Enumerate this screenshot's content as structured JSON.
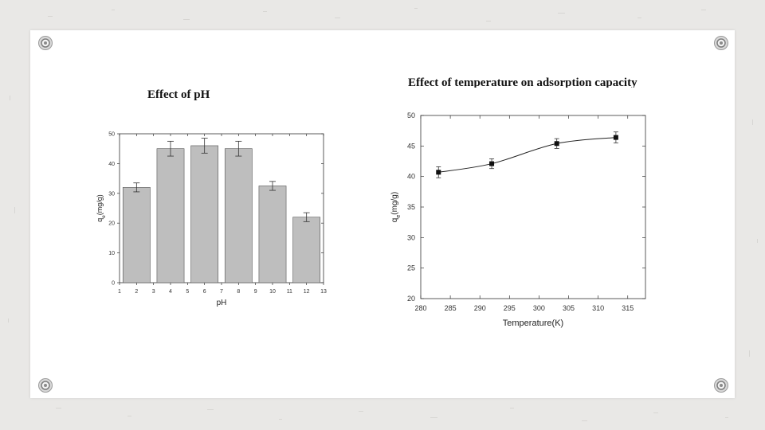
{
  "slide": {
    "left_title": "Effect of pH",
    "right_title": "Effect of temperature on adsorption capacity"
  },
  "chart_data": [
    {
      "type": "bar",
      "xlabel": "pH",
      "ylabel": "q_e(mg/g)",
      "xlim": [
        1,
        13
      ],
      "ylim": [
        0,
        50
      ],
      "xticks": [
        1,
        2,
        3,
        4,
        5,
        6,
        7,
        8,
        9,
        10,
        11,
        12,
        13
      ],
      "yticks": [
        0,
        10,
        20,
        30,
        40,
        50
      ],
      "x": [
        2,
        4,
        6,
        8,
        10,
        12
      ],
      "values": [
        32,
        45,
        46,
        45,
        32.5,
        22
      ],
      "errors": [
        1.5,
        2.5,
        2.5,
        2.5,
        1.5,
        1.5
      ],
      "bar_color": "#bebebe",
      "grid": false
    },
    {
      "type": "line",
      "xlabel": "Temperature(K)",
      "ylabel": "q_e(mg/g)",
      "xlim": [
        280,
        318
      ],
      "ylim": [
        20,
        50
      ],
      "xticks": [
        280,
        285,
        290,
        295,
        300,
        305,
        310,
        315
      ],
      "yticks": [
        20,
        25,
        30,
        35,
        40,
        45,
        50
      ],
      "series": [
        {
          "x": [
            283,
            292,
            303,
            313
          ],
          "y": [
            40.7,
            42.1,
            45.4,
            46.4
          ],
          "errors": [
            0.9,
            0.8,
            0.8,
            0.9
          ],
          "marker": "square",
          "fit_curve": true
        }
      ],
      "grid": false
    }
  ]
}
